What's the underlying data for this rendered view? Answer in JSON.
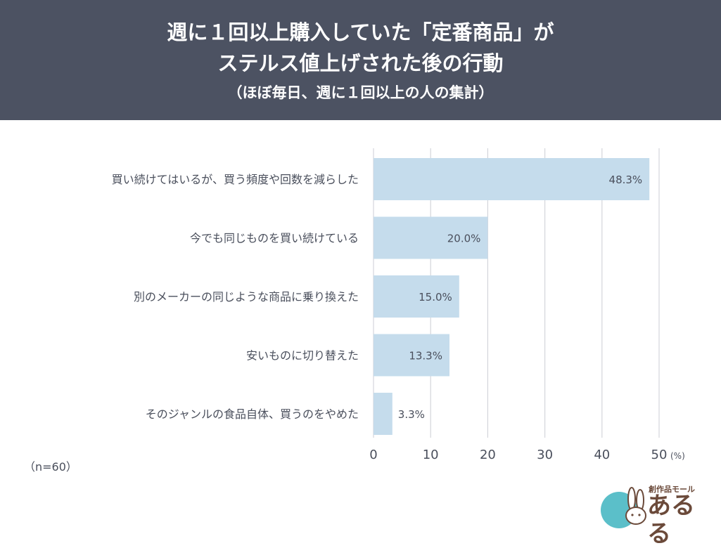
{
  "header": {
    "title_line1": "週に１回以上購入していた「定番商品」が",
    "title_line2": "ステルス値上げされた後の行動",
    "subtitle": "（ほぼ毎日、週に１回以上の人の集計）"
  },
  "chart_data": {
    "type": "bar",
    "orientation": "horizontal",
    "categories": [
      "買い続けてはいるが、買う頻度や回数を減らした",
      "今でも同じものを買い続けている",
      "別のメーカーの同じような商品に乗り換えた",
      "安いものに切り替えた",
      "そのジャンルの食品自体、買うのをやめた"
    ],
    "values": [
      48.3,
      20.0,
      15.0,
      13.3,
      3.3
    ],
    "value_labels": [
      "48.3%",
      "20.0%",
      "15.0%",
      "13.3%",
      "3.3%"
    ],
    "xlim": [
      0,
      50
    ],
    "ticks": [
      0,
      10,
      20,
      30,
      40,
      50
    ],
    "tick_labels": [
      "0",
      "10",
      "20",
      "30",
      "40",
      "50"
    ],
    "unit": "(%)",
    "grid": true,
    "bar_color": "#c5dcec"
  },
  "note": "（n=60）",
  "logo": {
    "small_text": "創作品モール",
    "big_text": "あるる",
    "accent_color": "#5bbfc9"
  }
}
